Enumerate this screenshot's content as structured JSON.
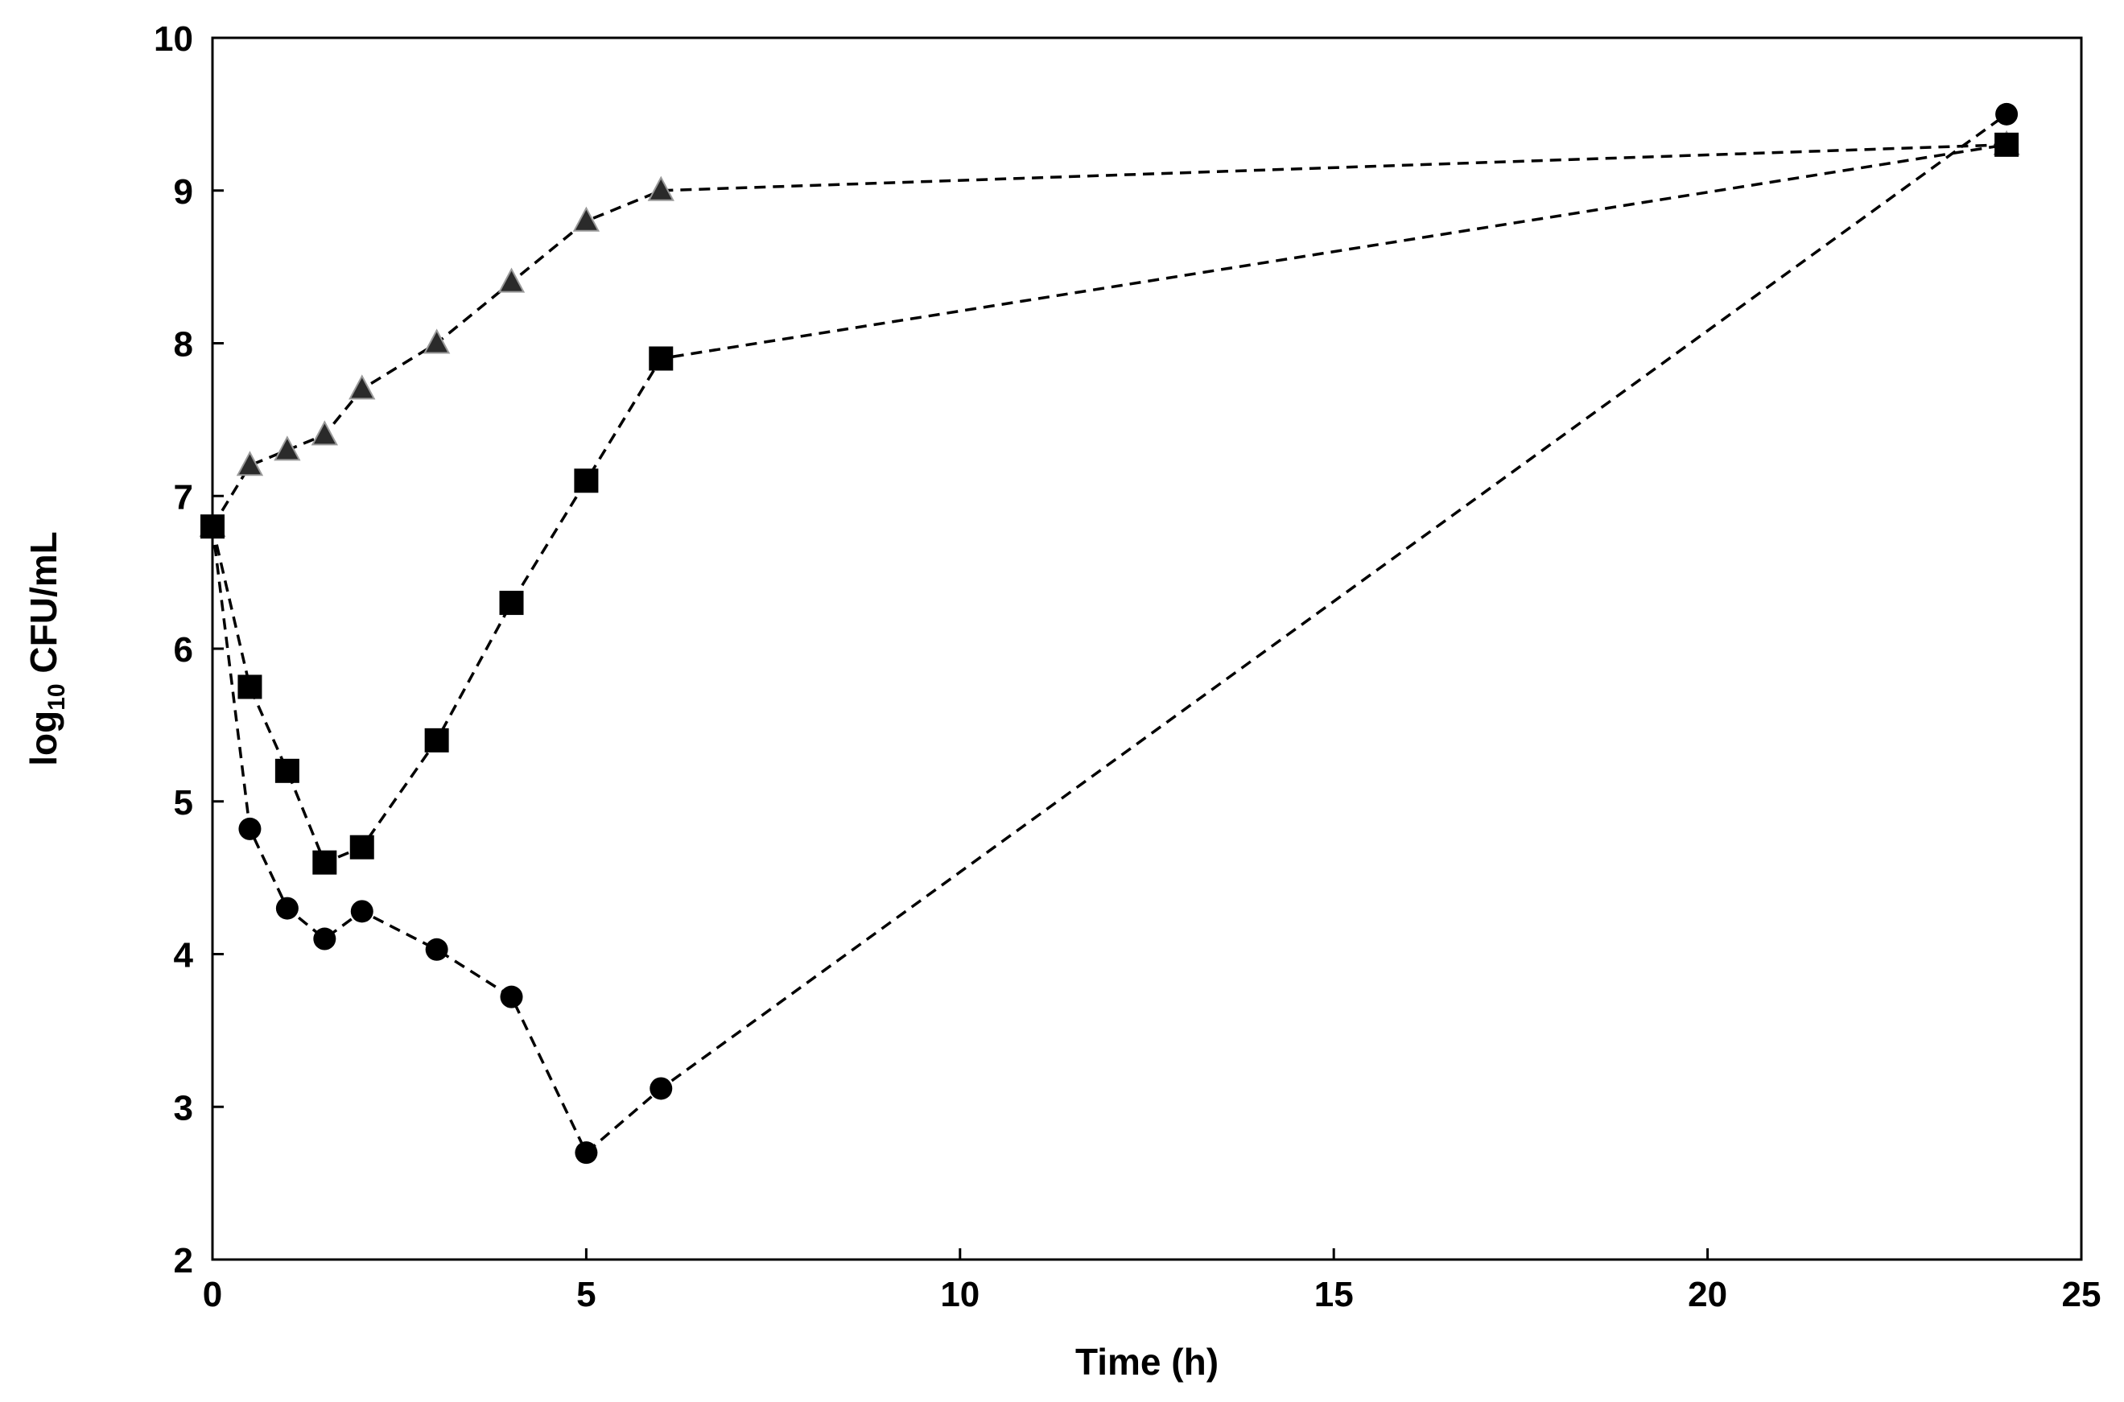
{
  "chart_data": {
    "type": "line",
    "title": "",
    "xlabel": "Time (h)",
    "ylabel": {
      "prefix": "log",
      "subscript": "10",
      "suffix": " CFU/mL"
    },
    "xlim": [
      0,
      25
    ],
    "ylim": [
      2,
      10
    ],
    "xticks": [
      0,
      5,
      10,
      15,
      20,
      25
    ],
    "yticks": [
      2,
      3,
      4,
      5,
      6,
      7,
      8,
      9,
      10
    ],
    "grid": false,
    "legend": "none",
    "series": [
      {
        "name": "triangle-series",
        "marker": "triangle",
        "line_style": "dashed",
        "color": "#000000",
        "x": [
          0,
          0.5,
          1,
          1.5,
          2,
          3,
          4,
          5,
          6,
          24
        ],
        "y": [
          6.8,
          7.2,
          7.3,
          7.4,
          7.7,
          8.0,
          8.4,
          8.8,
          9.0,
          9.3
        ]
      },
      {
        "name": "square-series",
        "marker": "square",
        "line_style": "dashed",
        "color": "#000000",
        "x": [
          0,
          0.5,
          1,
          1.5,
          2,
          3,
          4,
          5,
          6,
          24
        ],
        "y": [
          6.8,
          5.75,
          5.2,
          4.6,
          4.7,
          5.4,
          6.3,
          7.1,
          7.9,
          9.3
        ]
      },
      {
        "name": "circle-series",
        "marker": "circle",
        "line_style": "dashed",
        "color": "#000000",
        "x": [
          0,
          0.5,
          1,
          1.5,
          2,
          3,
          4,
          5,
          6,
          24
        ],
        "y": [
          6.8,
          4.82,
          4.3,
          4.1,
          4.28,
          4.03,
          3.72,
          2.7,
          3.12,
          9.5
        ]
      }
    ]
  }
}
